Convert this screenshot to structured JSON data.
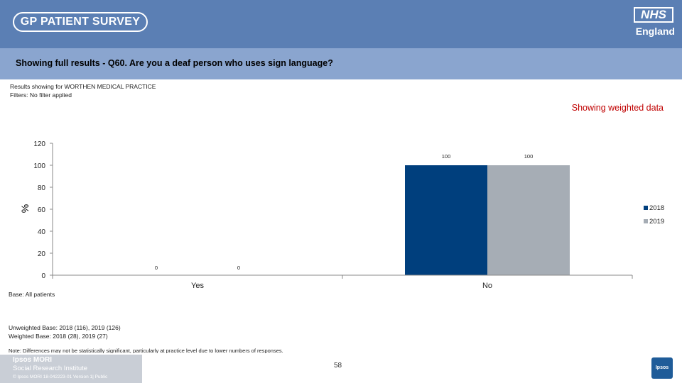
{
  "header": {
    "logo_text": "GP PATIENT SURVEY",
    "nhs_logo": "NHS",
    "nhs_sub": "England"
  },
  "question_title": "Showing full results - Q60.  Are you a deaf person who uses sign language?",
  "meta": {
    "practice": "Results showing for WORTHEN MEDICAL PRACTICE",
    "filters": "Filters: No filter applied",
    "weighted_note": "Showing weighted data",
    "base": "Base: All patients",
    "unweighted_base": "Unweighted Base: 2018 (116), 2019 (126)",
    "weighted_base": "Weighted Base: 2018 (28), 2019 (27)",
    "note": "Note: Differences may not be statistically significant, particularly at practice level due to lower numbers of responses."
  },
  "footer": {
    "ipsos": "Ipsos MORI",
    "sri": "Social Research Institute",
    "copyright": "© Ipsos MORI     18-042223-01 Version 1| Public",
    "page_number": "58",
    "badge": "Ipsos"
  },
  "chart_data": {
    "type": "bar",
    "categories": [
      "Yes",
      "No"
    ],
    "series": [
      {
        "name": "2018",
        "values": [
          0,
          100
        ],
        "color": "#003f7d"
      },
      {
        "name": "2019",
        "values": [
          0,
          100
        ],
        "color": "#a6adb5"
      }
    ],
    "ylabel": "%",
    "ylim": [
      0,
      120
    ],
    "yticks": [
      "0",
      "20",
      "40",
      "60",
      "80",
      "100",
      "120"
    ],
    "data_labels": [
      [
        "0",
        "0"
      ],
      [
        "100",
        "100"
      ]
    ],
    "legend_position": "right"
  }
}
